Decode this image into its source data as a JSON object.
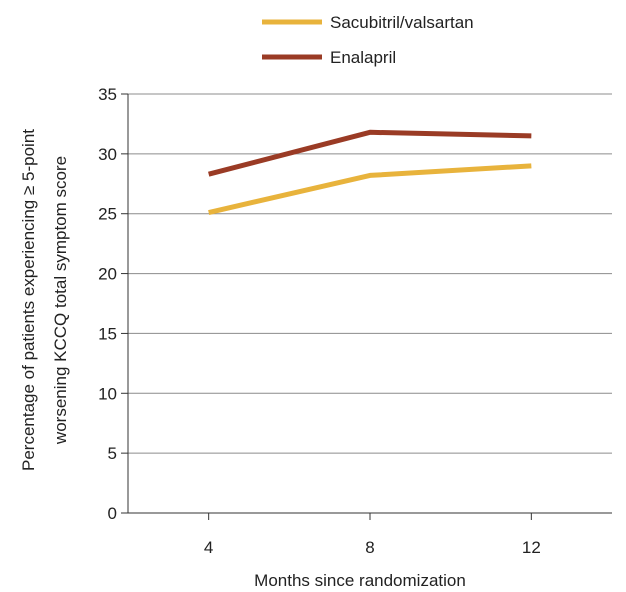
{
  "chart_data": {
    "type": "line",
    "x": [
      4,
      8,
      12
    ],
    "series": [
      {
        "name": "Sacubitril/valsartan",
        "values": [
          25.1,
          28.2,
          29.0
        ],
        "color": "#E8B33C"
      },
      {
        "name": "Enalapril",
        "values": [
          28.3,
          31.8,
          31.5
        ],
        "color": "#9A3B25"
      }
    ],
    "xlabel": "Months since randomization",
    "ylabel_lines": [
      "Percentage of patients experiencing ≥ 5-point",
      "worsening KCCQ total symptom score"
    ],
    "ylim": [
      0,
      35
    ],
    "yticks": [
      0,
      5,
      10,
      15,
      20,
      25,
      30,
      35
    ],
    "xlim": [
      2,
      14
    ],
    "xticks": [
      4,
      8,
      12
    ],
    "grid": "horizontal",
    "legend_position": "top"
  }
}
